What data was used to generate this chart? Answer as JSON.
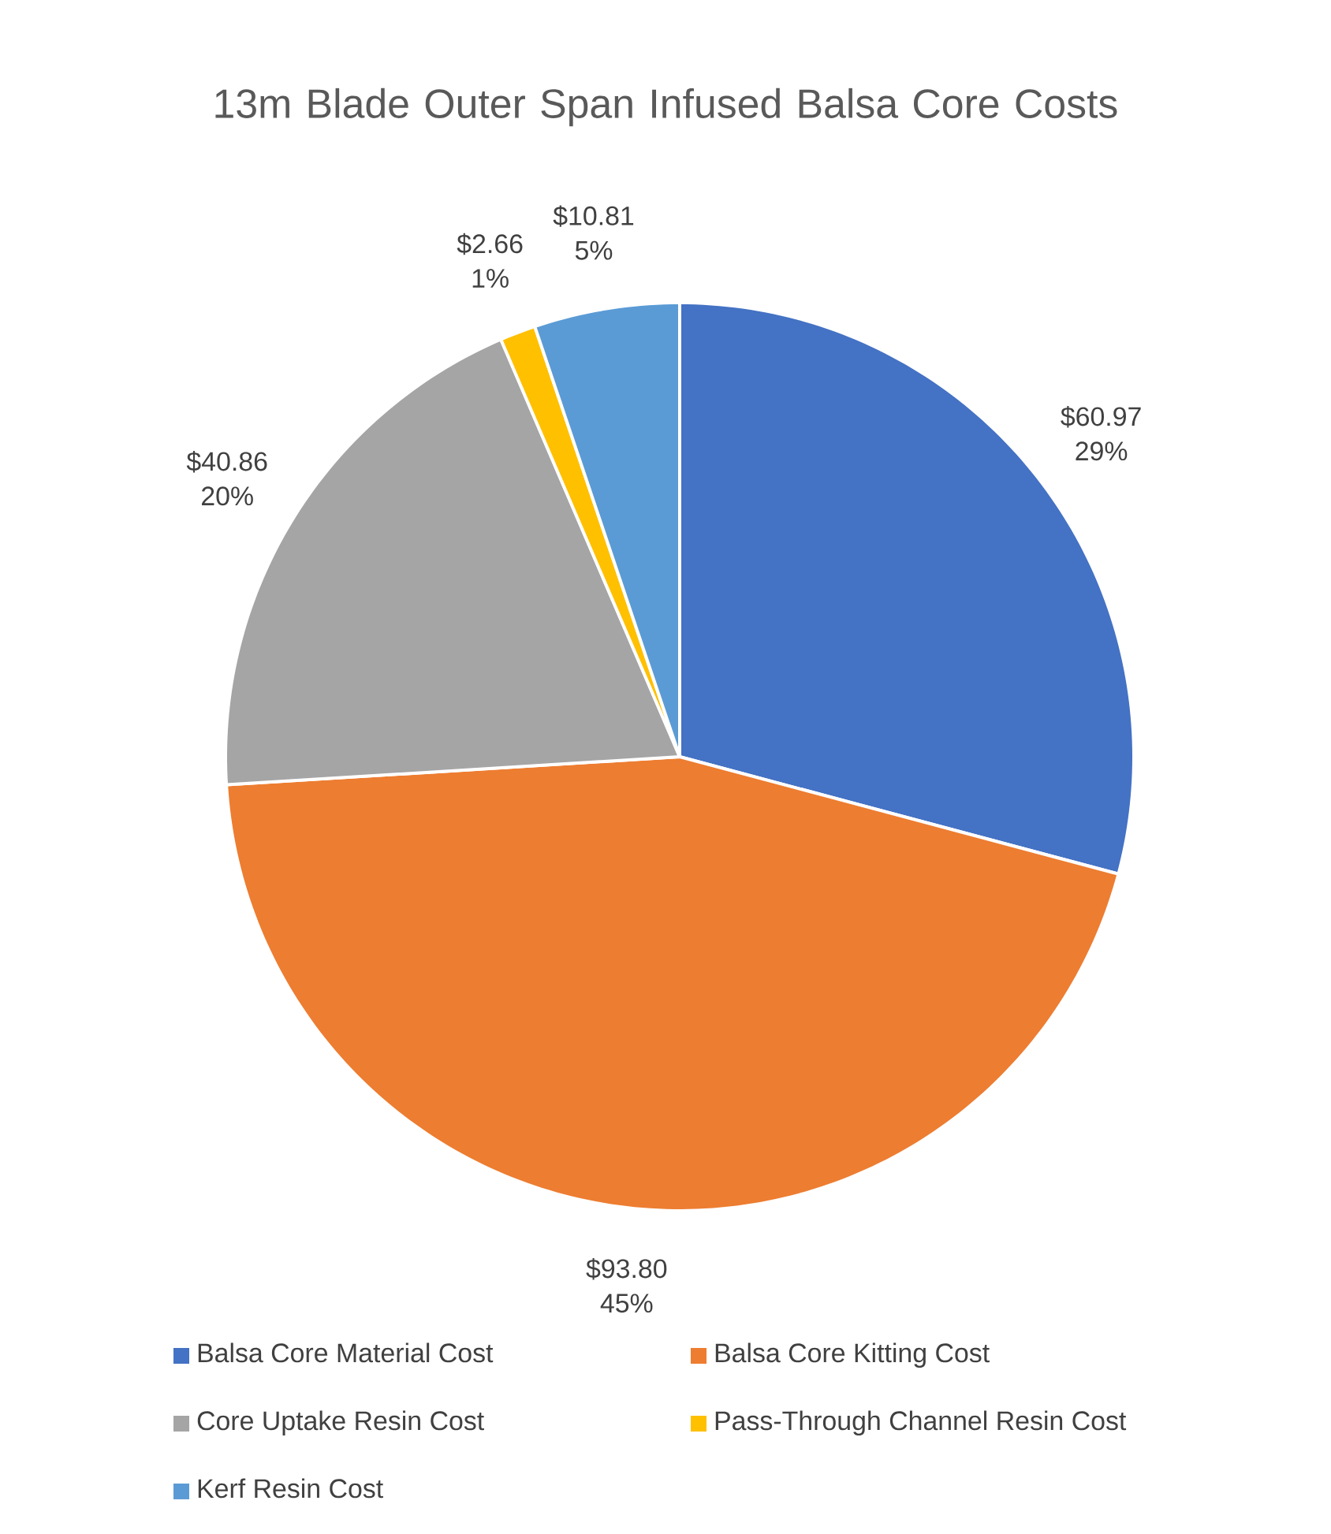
{
  "chart_data": {
    "type": "pie",
    "title": "13m Blade Outer Span Infused Balsa Core Costs",
    "categories": [
      "Balsa Core Material Cost",
      "Balsa Core Kitting Cost",
      "Core Uptake Resin Cost",
      "Pass-Through Channel Resin Cost",
      "Kerf Resin Cost"
    ],
    "values": [
      60.97,
      93.8,
      40.86,
      2.66,
      10.81
    ],
    "colors": [
      "#4472c4",
      "#ed7d31",
      "#a5a5a5",
      "#ffc000",
      "#5b9bd5"
    ],
    "value_labels": [
      "$60.97",
      "$93.80",
      "$40.86",
      "$2.66",
      "$10.81"
    ],
    "annotations": [
      {
        "text": "29%",
        "x": "Balsa Core Material Cost"
      },
      {
        "text": "45%",
        "x": "Balsa Core Kitting Cost"
      },
      {
        "text": "20%",
        "x": "Core Uptake Resin Cost"
      },
      {
        "text": "1%",
        "x": "Pass-Through Channel Resin Cost"
      },
      {
        "text": "5%",
        "x": "Kerf Resin Cost"
      }
    ],
    "legend": "bottom"
  }
}
